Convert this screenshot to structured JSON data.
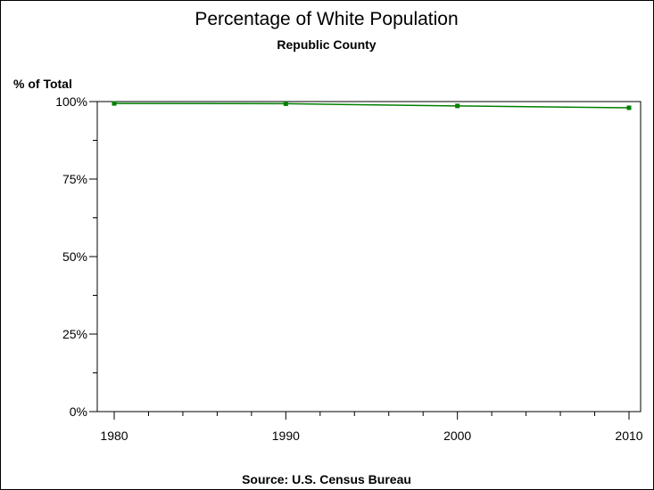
{
  "chart_data": {
    "type": "line",
    "title": "Percentage of White Population",
    "subtitle": "Republic County",
    "ylabel": "% of Total",
    "xlabel": "",
    "footnote": "Source: U.S. Census Bureau",
    "x": [
      1980,
      1990,
      2000,
      2010
    ],
    "series": [
      {
        "values": [
          99.4,
          99.3,
          98.6,
          98.0
        ],
        "color": "#008000"
      }
    ],
    "xlim": [
      1980,
      2010
    ],
    "ylim": [
      0,
      100
    ],
    "x_ticks": [
      1980,
      1990,
      2000,
      2010
    ],
    "x_tick_labels": [
      "1980",
      "1990",
      "2000",
      "2010"
    ],
    "x_minor_step": 2,
    "y_ticks": [
      0,
      25,
      50,
      75,
      100
    ],
    "y_tick_labels": [
      "0%",
      "25%",
      "50%",
      "75%",
      "100%"
    ],
    "y_minor_step": 12.5,
    "grid": false,
    "legend": "none"
  }
}
